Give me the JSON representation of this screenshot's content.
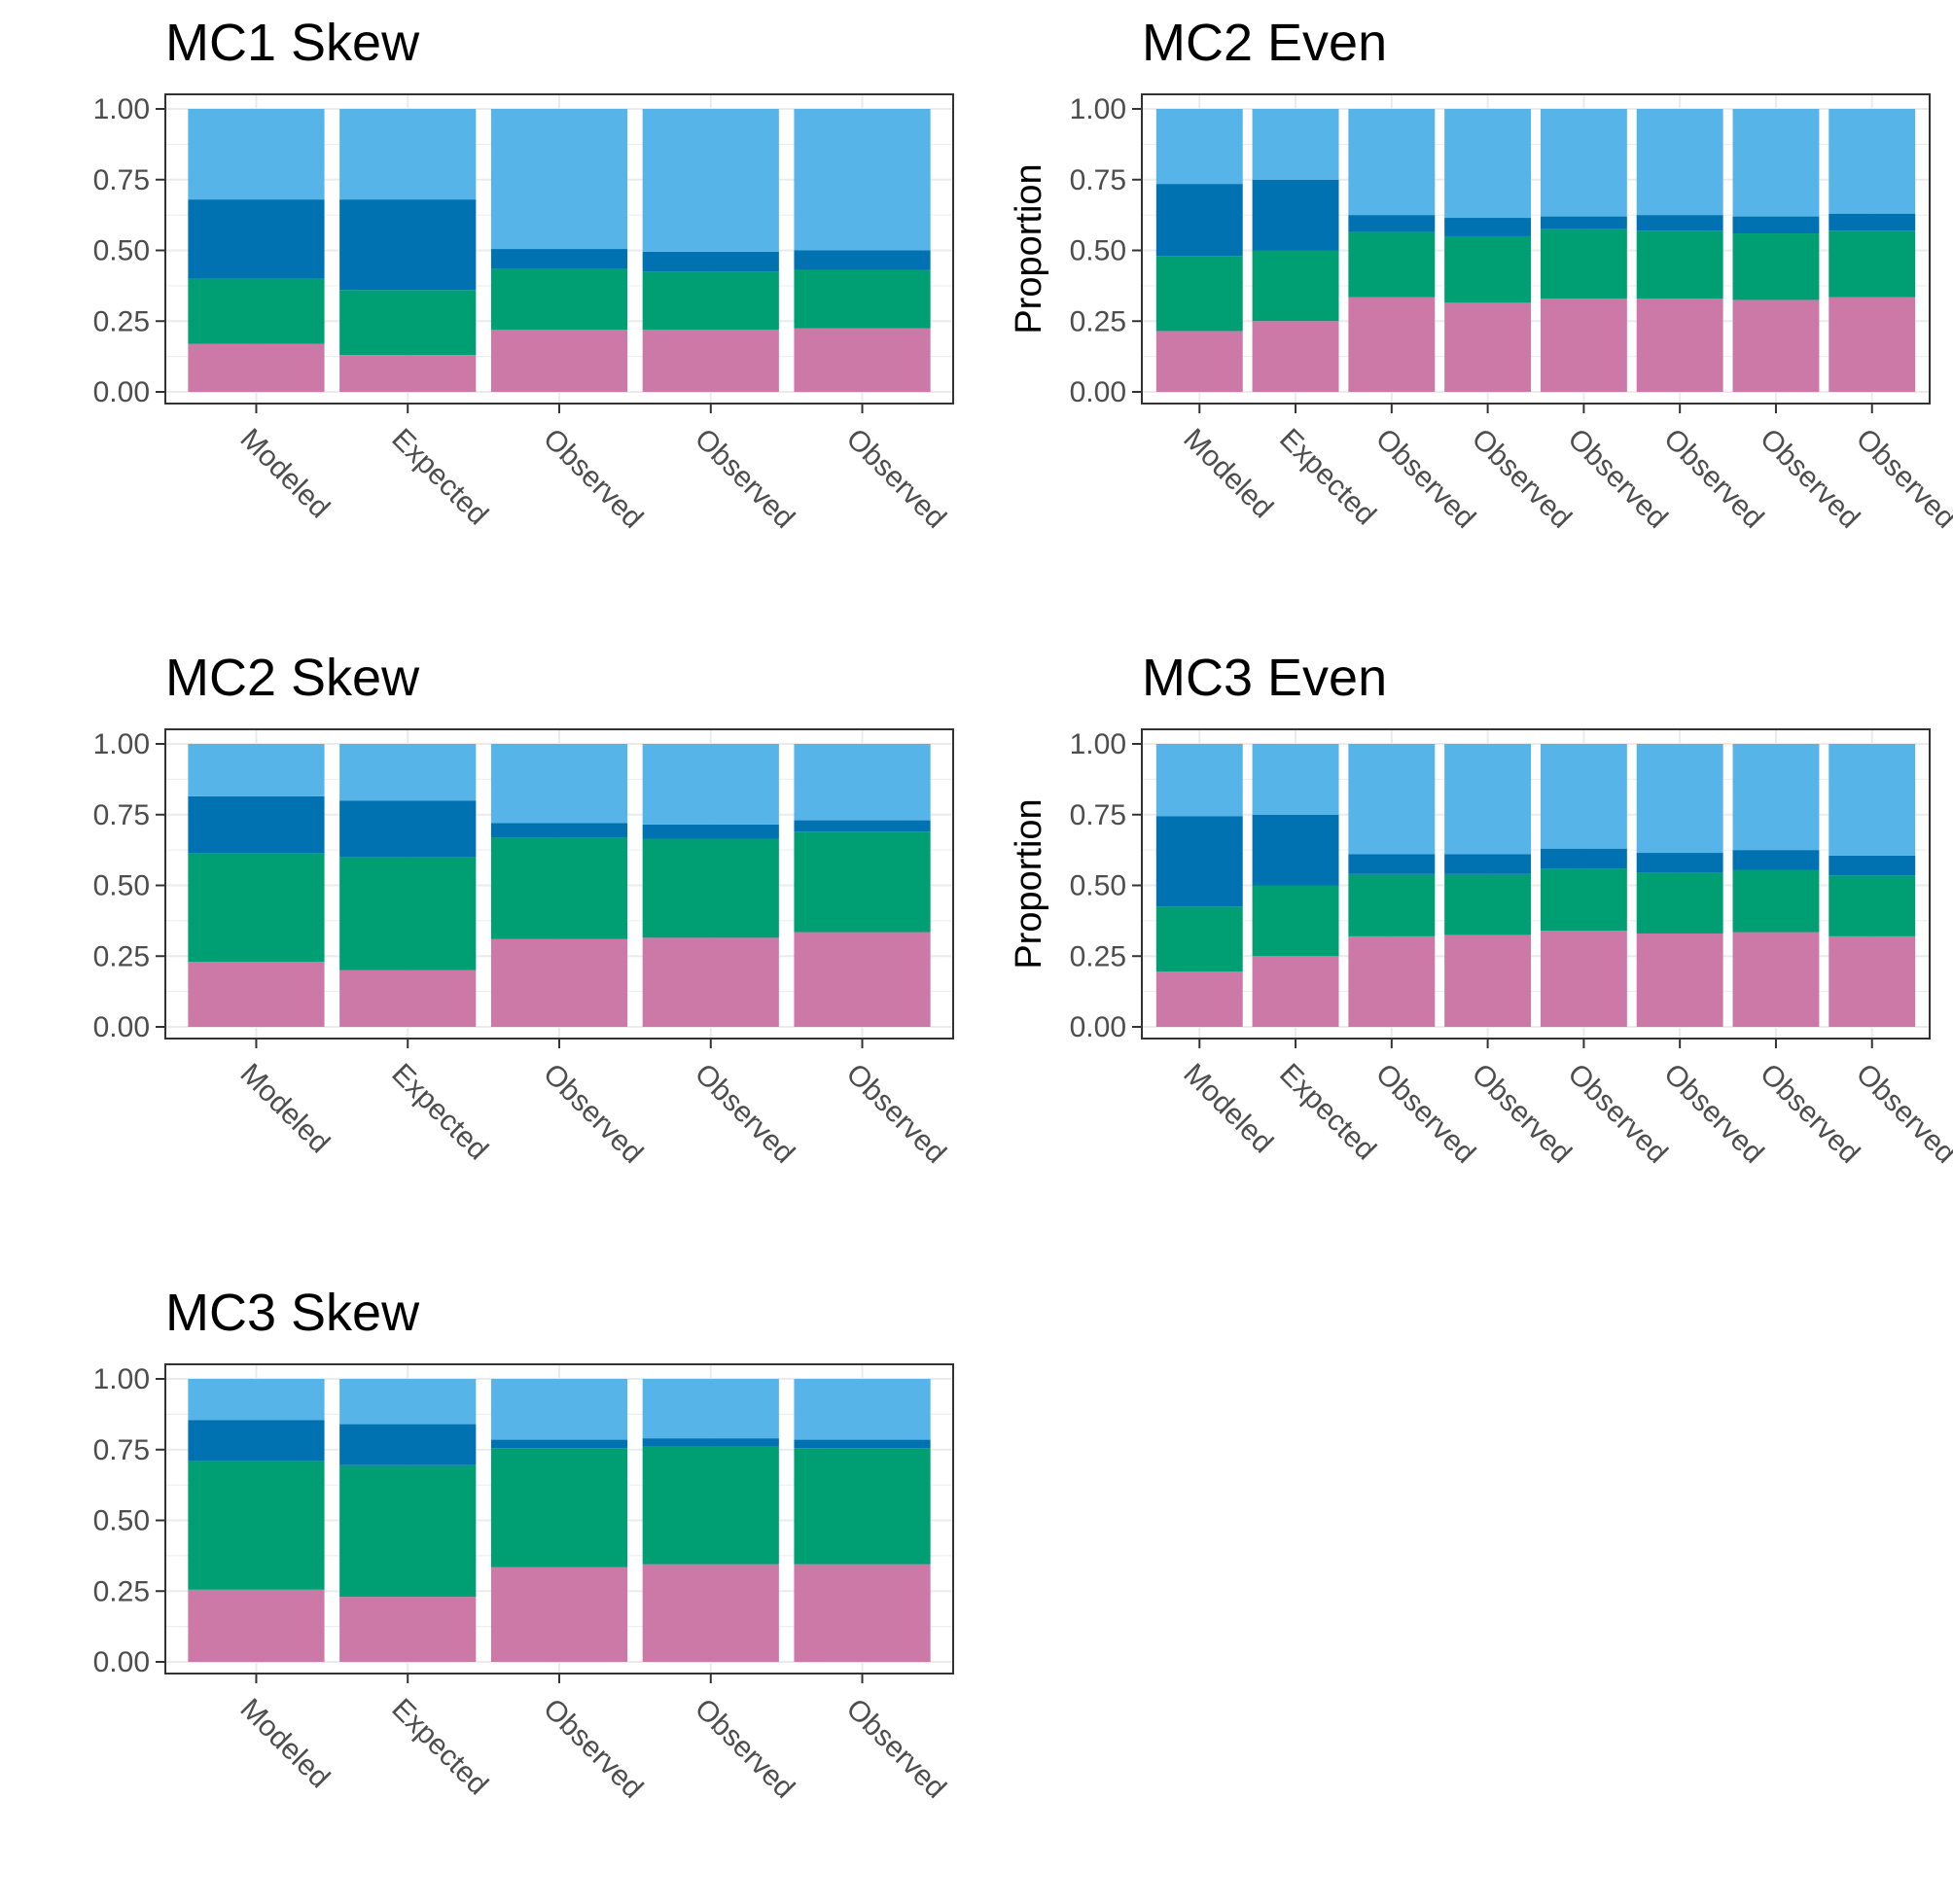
{
  "colors": {
    "segment_1": "#cc79a7",
    "segment_2": "#009e73",
    "segment_3": "#0072b2",
    "segment_4": "#56b4e9",
    "gridline": "#ebebeb",
    "tick_text": "#4d4d4d"
  },
  "chart_data": [
    {
      "type": "bar",
      "stacked": true,
      "title": "MC1 Skew",
      "ylabel": "",
      "ylim": [
        0,
        1
      ],
      "yticks": [
        "0.00",
        "0.25",
        "0.50",
        "0.75",
        "1.00"
      ],
      "categories": [
        "Modeled",
        "Expected",
        "Observed",
        "Observed",
        "Observed"
      ],
      "series": [
        {
          "values": [
            0.17,
            0.13,
            0.22,
            0.22,
            0.225
          ]
        },
        {
          "values": [
            0.23,
            0.23,
            0.215,
            0.205,
            0.205
          ]
        },
        {
          "values": [
            0.28,
            0.32,
            0.07,
            0.07,
            0.07
          ]
        },
        {
          "values": [
            0.32,
            0.32,
            0.495,
            0.505,
            0.5
          ]
        }
      ]
    },
    {
      "type": "bar",
      "stacked": true,
      "title": "MC2 Even",
      "ylabel": "Proportion",
      "ylim": [
        0,
        1
      ],
      "yticks": [
        "0.00",
        "0.25",
        "0.50",
        "0.75",
        "1.00"
      ],
      "categories": [
        "Modeled",
        "Expected",
        "Observed",
        "Observed",
        "Observed",
        "Observed",
        "Observed",
        "Observed"
      ],
      "series": [
        {
          "values": [
            0.215,
            0.25,
            0.335,
            0.315,
            0.33,
            0.33,
            0.325,
            0.335
          ]
        },
        {
          "values": [
            0.265,
            0.25,
            0.23,
            0.235,
            0.245,
            0.24,
            0.235,
            0.235
          ]
        },
        {
          "values": [
            0.255,
            0.25,
            0.06,
            0.065,
            0.045,
            0.055,
            0.06,
            0.06
          ]
        },
        {
          "values": [
            0.265,
            0.25,
            0.375,
            0.385,
            0.38,
            0.375,
            0.38,
            0.37
          ]
        }
      ]
    },
    {
      "type": "bar",
      "stacked": true,
      "title": "MC2 Skew",
      "ylabel": "",
      "ylim": [
        0,
        1
      ],
      "yticks": [
        "0.00",
        "0.25",
        "0.50",
        "0.75",
        "1.00"
      ],
      "categories": [
        "Modeled",
        "Expected",
        "Observed",
        "Observed",
        "Observed"
      ],
      "series": [
        {
          "values": [
            0.23,
            0.2,
            0.31,
            0.315,
            0.335
          ]
        },
        {
          "values": [
            0.385,
            0.4,
            0.36,
            0.35,
            0.355
          ]
        },
        {
          "values": [
            0.2,
            0.2,
            0.05,
            0.05,
            0.04
          ]
        },
        {
          "values": [
            0.185,
            0.2,
            0.28,
            0.285,
            0.27
          ]
        }
      ]
    },
    {
      "type": "bar",
      "stacked": true,
      "title": "MC3 Even",
      "ylabel": "Proportion",
      "ylim": [
        0,
        1
      ],
      "yticks": [
        "0.00",
        "0.25",
        "0.50",
        "0.75",
        "1.00"
      ],
      "categories": [
        "Modeled",
        "Expected",
        "Observed",
        "Observed",
        "Observed",
        "Observed",
        "Observed",
        "Observed"
      ],
      "series": [
        {
          "values": [
            0.195,
            0.25,
            0.32,
            0.325,
            0.34,
            0.33,
            0.335,
            0.32
          ]
        },
        {
          "values": [
            0.23,
            0.25,
            0.22,
            0.215,
            0.22,
            0.215,
            0.22,
            0.215
          ]
        },
        {
          "values": [
            0.32,
            0.25,
            0.07,
            0.07,
            0.07,
            0.07,
            0.07,
            0.07
          ]
        },
        {
          "values": [
            0.255,
            0.25,
            0.39,
            0.39,
            0.37,
            0.385,
            0.375,
            0.395
          ]
        }
      ]
    },
    {
      "type": "bar",
      "stacked": true,
      "title": "MC3 Skew",
      "ylabel": "",
      "ylim": [
        0,
        1
      ],
      "yticks": [
        "0.00",
        "0.25",
        "0.50",
        "0.75",
        "1.00"
      ],
      "categories": [
        "Modeled",
        "Expected",
        "Observed",
        "Observed",
        "Observed"
      ],
      "series": [
        {
          "values": [
            0.255,
            0.23,
            0.335,
            0.345,
            0.345
          ]
        },
        {
          "values": [
            0.455,
            0.465,
            0.42,
            0.415,
            0.41
          ]
        },
        {
          "values": [
            0.145,
            0.145,
            0.03,
            0.03,
            0.03
          ]
        },
        {
          "values": [
            0.145,
            0.16,
            0.215,
            0.21,
            0.215
          ]
        }
      ]
    }
  ]
}
